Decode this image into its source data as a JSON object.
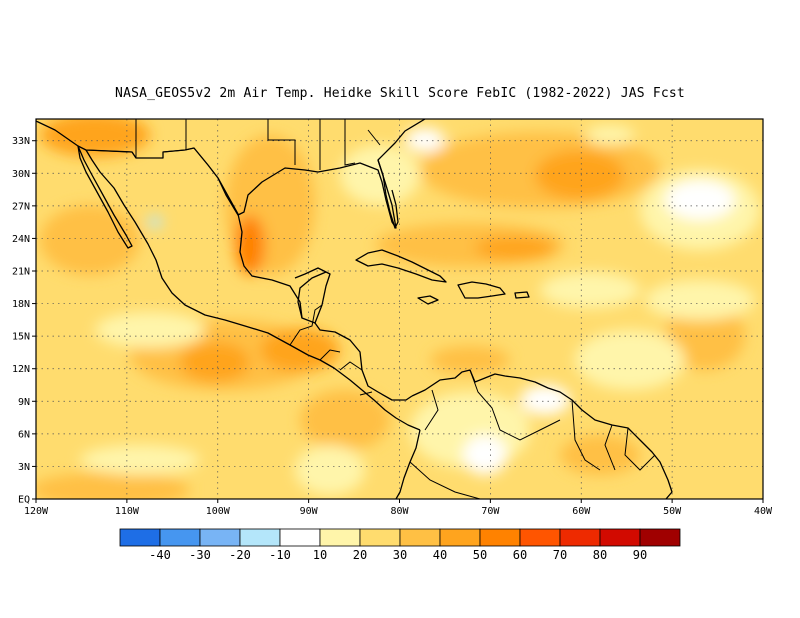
{
  "title": "NASA_GEOS5v2  2m Air Temp. Heidke Skill Score FebIC (1982-2022) JAS Fcst",
  "map": {
    "lon_range": [
      -120,
      -40
    ],
    "lat_range": [
      0,
      35
    ],
    "lat_labels": [
      "EQ",
      "3N",
      "6N",
      "9N",
      "12N",
      "15N",
      "18N",
      "21N",
      "24N",
      "27N",
      "30N",
      "33N"
    ],
    "lat_values": [
      0,
      3,
      6,
      9,
      12,
      15,
      18,
      21,
      24,
      27,
      30,
      33
    ],
    "lon_labels": [
      "120W",
      "110W",
      "100W",
      "90W",
      "80W",
      "70W",
      "60W",
      "50W",
      "40W"
    ],
    "lon_values": [
      -120,
      -110,
      -100,
      -90,
      -80,
      -70,
      -60,
      -50,
      -40
    ],
    "grid": "dotted"
  },
  "colorbar": {
    "bins": [
      {
        "color": "#1e6ee6"
      },
      {
        "color": "#4696f0"
      },
      {
        "color": "#78b4f5"
      },
      {
        "color": "#b4e6fa"
      },
      {
        "color": "#ffffff"
      },
      {
        "color": "#fff5aa"
      },
      {
        "color": "#ffdc6e"
      },
      {
        "color": "#ffc044"
      },
      {
        "color": "#ffa41e"
      },
      {
        "color": "#ff8200"
      },
      {
        "color": "#ff5500"
      },
      {
        "color": "#ee2a00"
      },
      {
        "color": "#d20a00"
      },
      {
        "color": "#a00000"
      }
    ],
    "labels": [
      "-40",
      "-30",
      "-20",
      "-10",
      "10",
      "20",
      "30",
      "40",
      "50",
      "60",
      "70",
      "80",
      "90"
    ]
  }
}
